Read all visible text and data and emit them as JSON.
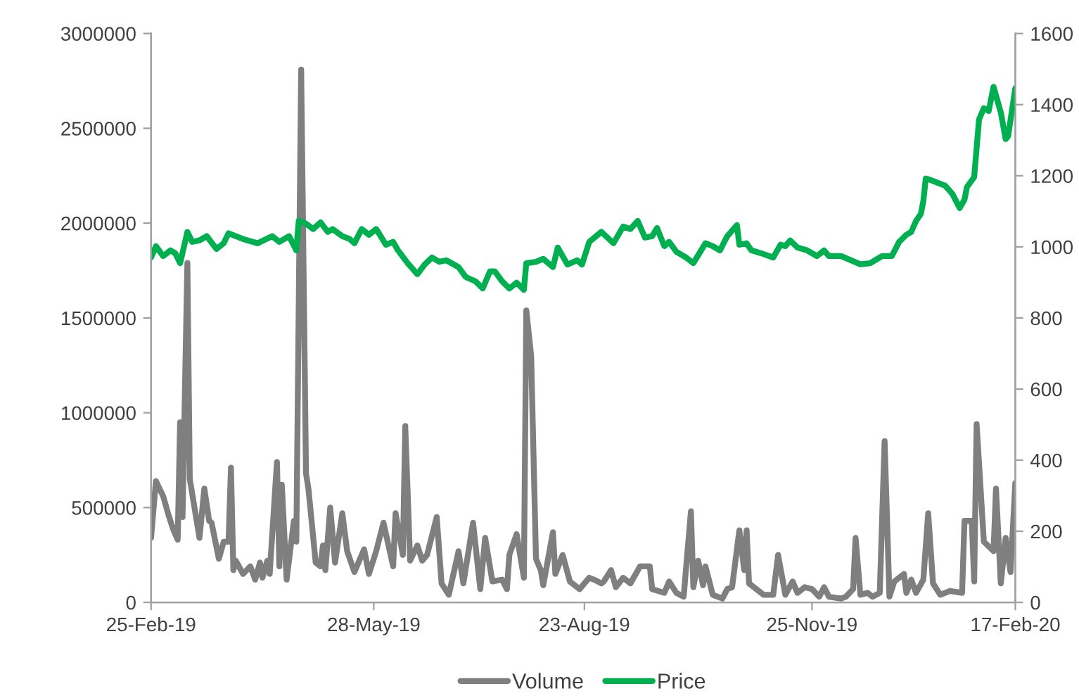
{
  "chart_data": {
    "type": "line",
    "xlim": [
      "2019-02-25",
      "2020-02-17"
    ],
    "xticks": [
      {
        "value": "2019-02-25",
        "label": "25-Feb-19"
      },
      {
        "value": "2019-05-28",
        "label": "28-May-19"
      },
      {
        "value": "2019-08-23",
        "label": "23-Aug-19"
      },
      {
        "value": "2019-11-25",
        "label": "25-Nov-19"
      },
      {
        "value": "2020-02-17",
        "label": "17-Feb-20"
      }
    ],
    "ylim": [
      0,
      3000000
    ],
    "yticks": [
      0,
      500000,
      1000000,
      1500000,
      2000000,
      2500000,
      3000000
    ],
    "y2lim": [
      0,
      1600
    ],
    "y2ticks": [
      0,
      200,
      400,
      600,
      800,
      1000,
      1200,
      1400,
      1600
    ],
    "legend": "bottom",
    "grid": false,
    "series": [
      {
        "name": "Volume",
        "color": "#7f7f7f",
        "axis": "y",
        "x": [
          "2019-02-25",
          "2019-02-27",
          "2019-03-02",
          "2019-03-04",
          "2019-03-06",
          "2019-03-08",
          "2019-03-09",
          "2019-03-10",
          "2019-03-12",
          "2019-03-13",
          "2019-03-17",
          "2019-03-19",
          "2019-03-21",
          "2019-03-22",
          "2019-03-25",
          "2019-03-27",
          "2019-03-29",
          "2019-03-30",
          "2019-03-31",
          "2019-04-01",
          "2019-04-04",
          "2019-04-07",
          "2019-04-09",
          "2019-04-11",
          "2019-04-12",
          "2019-04-14",
          "2019-04-15",
          "2019-04-18",
          "2019-04-19",
          "2019-04-20",
          "2019-04-22",
          "2019-04-25",
          "2019-04-26",
          "2019-04-28",
          "2019-04-30",
          "2019-05-01",
          "2019-05-04",
          "2019-05-06",
          "2019-05-07",
          "2019-05-08",
          "2019-05-10",
          "2019-05-12",
          "2019-05-15",
          "2019-05-17",
          "2019-05-20",
          "2019-05-24",
          "2019-05-26",
          "2019-05-29",
          "2019-06-01",
          "2019-06-05",
          "2019-06-06",
          "2019-06-09",
          "2019-06-10",
          "2019-06-12",
          "2019-06-15",
          "2019-06-17",
          "2019-06-19",
          "2019-06-23",
          "2019-06-25",
          "2019-06-28",
          "2019-07-02",
          "2019-07-04",
          "2019-07-08",
          "2019-07-11",
          "2019-07-13",
          "2019-07-16",
          "2019-07-20",
          "2019-07-22",
          "2019-07-23",
          "2019-07-26",
          "2019-07-29",
          "2019-07-30",
          "2019-08-01",
          "2019-08-03",
          "2019-08-05",
          "2019-08-06",
          "2019-08-10",
          "2019-08-11",
          "2019-08-14",
          "2019-08-17",
          "2019-08-21",
          "2019-08-25",
          "2019-08-27",
          "2019-08-30",
          "2019-08-31",
          "2019-09-03",
          "2019-09-05",
          "2019-09-08",
          "2019-09-11",
          "2019-09-15",
          "2019-09-19",
          "2019-09-20",
          "2019-09-25",
          "2019-09-27",
          "2019-09-30",
          "2019-10-03",
          "2019-10-06",
          "2019-10-07",
          "2019-10-09",
          "2019-10-11",
          "2019-10-12",
          "2019-10-15",
          "2019-10-19",
          "2019-10-21",
          "2019-10-23",
          "2019-10-26",
          "2019-10-28",
          "2019-10-29",
          "2019-10-30",
          "2019-11-05",
          "2019-11-09",
          "2019-11-11",
          "2019-11-14",
          "2019-11-17",
          "2019-11-19",
          "2019-11-22",
          "2019-11-25",
          "2019-11-28",
          "2019-11-30",
          "2019-12-02",
          "2019-12-07",
          "2019-12-09",
          "2019-12-12",
          "2019-12-13",
          "2019-12-15",
          "2019-12-18",
          "2019-12-20",
          "2019-12-23",
          "2019-12-25",
          "2019-12-27",
          "2019-12-29",
          "2020-01-02",
          "2020-01-03",
          "2020-01-05",
          "2020-01-07",
          "2020-01-10",
          "2020-01-12",
          "2020-01-14",
          "2020-01-17",
          "2020-01-21",
          "2020-01-26",
          "2020-01-27",
          "2020-01-30",
          "2020-01-31",
          "2020-02-01",
          "2020-02-04",
          "2020-02-08",
          "2020-02-09",
          "2020-02-11",
          "2020-02-13",
          "2020-02-15",
          "2020-02-17"
        ],
        "values": [
          340000,
          640000,
          560000,
          470000,
          390000,
          330000,
          950000,
          450000,
          1790000,
          650000,
          340000,
          600000,
          430000,
          420000,
          230000,
          320000,
          320000,
          710000,
          170000,
          220000,
          150000,
          190000,
          120000,
          210000,
          130000,
          220000,
          150000,
          740000,
          190000,
          620000,
          120000,
          430000,
          320000,
          2810000,
          680000,
          600000,
          210000,
          190000,
          300000,
          170000,
          500000,
          210000,
          470000,
          270000,
          160000,
          280000,
          150000,
          270000,
          420000,
          190000,
          470000,
          250000,
          930000,
          220000,
          300000,
          220000,
          250000,
          450000,
          100000,
          40000,
          270000,
          100000,
          420000,
          70000,
          340000,
          110000,
          120000,
          70000,
          250000,
          360000,
          130000,
          1540000,
          1300000,
          230000,
          170000,
          90000,
          370000,
          150000,
          250000,
          110000,
          70000,
          130000,
          120000,
          100000,
          110000,
          170000,
          80000,
          130000,
          100000,
          190000,
          190000,
          70000,
          50000,
          110000,
          50000,
          30000,
          480000,
          80000,
          220000,
          90000,
          190000,
          40000,
          20000,
          70000,
          80000,
          380000,
          170000,
          380000,
          100000,
          40000,
          40000,
          250000,
          40000,
          110000,
          50000,
          80000,
          70000,
          30000,
          80000,
          30000,
          20000,
          30000,
          70000,
          340000,
          40000,
          50000,
          30000,
          50000,
          850000,
          30000,
          110000,
          150000,
          50000,
          120000,
          50000,
          120000,
          470000,
          100000,
          40000,
          60000,
          50000,
          430000,
          430000,
          110000,
          940000,
          320000,
          270000,
          600000,
          100000,
          340000,
          160000,
          630000
        ]
      },
      {
        "name": "Price",
        "color": "#00b050",
        "axis": "y2",
        "x": [
          "2019-02-25",
          "2019-02-27",
          "2019-03-02",
          "2019-03-05",
          "2019-03-07",
          "2019-03-09",
          "2019-03-12",
          "2019-03-14",
          "2019-03-17",
          "2019-03-20",
          "2019-03-24",
          "2019-03-27",
          "2019-03-29",
          "2019-04-04",
          "2019-04-10",
          "2019-04-16",
          "2019-04-19",
          "2019-04-23",
          "2019-04-26",
          "2019-04-27",
          "2019-04-30",
          "2019-05-03",
          "2019-05-06",
          "2019-05-09",
          "2019-05-11",
          "2019-05-15",
          "2019-05-18",
          "2019-05-20",
          "2019-05-23",
          "2019-05-26",
          "2019-05-29",
          "2019-06-02",
          "2019-06-05",
          "2019-06-07",
          "2019-06-11",
          "2019-06-15",
          "2019-06-18",
          "2019-06-21",
          "2019-06-24",
          "2019-06-27",
          "2019-07-02",
          "2019-07-05",
          "2019-07-09",
          "2019-07-12",
          "2019-07-15",
          "2019-07-17",
          "2019-07-20",
          "2019-07-23",
          "2019-07-26",
          "2019-07-29",
          "2019-07-30",
          "2019-08-03",
          "2019-08-06",
          "2019-08-10",
          "2019-08-12",
          "2019-08-16",
          "2019-08-20",
          "2019-08-22",
          "2019-08-25",
          "2019-08-30",
          "2019-09-04",
          "2019-09-08",
          "2019-09-11",
          "2019-09-14",
          "2019-09-17",
          "2019-09-20",
          "2019-09-22",
          "2019-09-25",
          "2019-09-27",
          "2019-09-30",
          "2019-10-04",
          "2019-10-07",
          "2019-10-12",
          "2019-10-15",
          "2019-10-18",
          "2019-10-21",
          "2019-10-25",
          "2019-10-26",
          "2019-10-29",
          "2019-10-31",
          "2019-11-04",
          "2019-11-09",
          "2019-11-12",
          "2019-11-14",
          "2019-11-16",
          "2019-11-19",
          "2019-11-23",
          "2019-11-27",
          "2019-11-30",
          "2019-12-02",
          "2019-12-07",
          "2019-12-15",
          "2019-12-19",
          "2019-12-24",
          "2019-12-28",
          "2019-12-31",
          "2020-01-03",
          "2020-01-05",
          "2020-01-07",
          "2020-01-09",
          "2020-01-10",
          "2020-01-11",
          "2020-01-13",
          "2020-01-16",
          "2020-01-19",
          "2020-01-22",
          "2020-01-25",
          "2020-01-27",
          "2020-01-28",
          "2020-01-31",
          "2020-02-02",
          "2020-02-04",
          "2020-02-06",
          "2020-02-08",
          "2020-02-11",
          "2020-02-13",
          "2020-02-14",
          "2020-02-17"
        ],
        "values": [
          970,
          1002,
          974,
          990,
          982,
          954,
          1042,
          1014,
          1018,
          1030,
          994,
          1010,
          1038,
          1022,
          1010,
          1030,
          1014,
          1030,
          990,
          1073,
          1065,
          1050,
          1069,
          1042,
          1050,
          1030,
          1022,
          1010,
          1050,
          1034,
          1050,
          1006,
          1014,
          990,
          954,
          923,
          950,
          970,
          958,
          962,
          943,
          915,
          903,
          883,
          931,
          931,
          903,
          883,
          899,
          879,
          954,
          958,
          966,
          943,
          998,
          950,
          962,
          950,
          1014,
          1042,
          1010,
          1057,
          1050,
          1073,
          1026,
          1030,
          1053,
          1002,
          1014,
          986,
          970,
          954,
          1010,
          1002,
          990,
          1030,
          1061,
          1006,
          1010,
          990,
          982,
          970,
          1006,
          1002,
          1018,
          998,
          990,
          974,
          990,
          974,
          974,
          951,
          954,
          974,
          974,
          1014,
          1034,
          1042,
          1073,
          1093,
          1129,
          1192,
          1188,
          1180,
          1172,
          1149,
          1109,
          1133,
          1168,
          1196,
          1358,
          1390,
          1382,
          1450,
          1378,
          1303,
          1311,
          1446
        ]
      }
    ]
  }
}
